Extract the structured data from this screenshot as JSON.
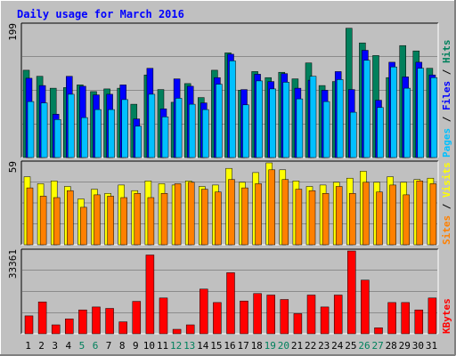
{
  "chart_data": [
    {
      "type": "bar",
      "panel": "hits-files-pages",
      "title": "Daily usage for March 2016",
      "x": [
        1,
        2,
        3,
        4,
        5,
        6,
        7,
        8,
        9,
        10,
        11,
        12,
        13,
        14,
        15,
        16,
        17,
        18,
        19,
        20,
        21,
        22,
        23,
        24,
        25,
        26,
        27,
        28,
        29,
        30,
        31
      ],
      "ymax_label": "199",
      "ylim": [
        0,
        199
      ],
      "right_labels": [
        "Pages",
        "Files",
        "Hits"
      ],
      "series": [
        {
          "name": "Hits",
          "color": "#00805c",
          "values": [
            131,
            122,
            104,
            105,
            109,
            99,
            103,
            104,
            80,
            124,
            102,
            83,
            111,
            90,
            131,
            157,
            101,
            129,
            120,
            128,
            118,
            142,
            108,
            114,
            194,
            172,
            153,
            120,
            168,
            160,
            134
          ]
        },
        {
          "name": "Files",
          "color": "#0000ff",
          "values": [
            119,
            108,
            65,
            122,
            107,
            94,
            95,
            109,
            58,
            134,
            73,
            118,
            107,
            82,
            120,
            155,
            102,
            125,
            114,
            126,
            104,
            116,
            101,
            129,
            102,
            161,
            86,
            143,
            121,
            143,
            124
          ]
        },
        {
          "name": "Pages",
          "color": "#00c0ff",
          "values": [
            84,
            82,
            57,
            95,
            60,
            72,
            72,
            87,
            47,
            95,
            61,
            89,
            80,
            72,
            110,
            145,
            79,
            115,
            103,
            113,
            88,
            122,
            84,
            117,
            68,
            146,
            75,
            136,
            104,
            134,
            120
          ]
        }
      ]
    },
    {
      "type": "bar",
      "panel": "visits-sites",
      "ymax_label": "59",
      "ylim": [
        0,
        59
      ],
      "right_labels": [
        "Sites",
        "Visits"
      ],
      "series": [
        {
          "name": "Visits",
          "color": "#ffff00",
          "values": [
            49,
            44,
            46,
            42,
            33,
            40,
            37,
            43,
            39,
            46,
            44,
            43,
            46,
            42,
            43,
            55,
            45,
            52,
            59,
            54,
            46,
            42,
            43,
            45,
            48,
            53,
            45,
            49,
            45,
            47,
            48
          ]
        },
        {
          "name": "Sites",
          "color": "#ff8000",
          "values": [
            41,
            35,
            34,
            39,
            27,
            36,
            35,
            34,
            37,
            34,
            37,
            44,
            45,
            40,
            38,
            47,
            41,
            44,
            54,
            47,
            40,
            39,
            37,
            42,
            37,
            45,
            38,
            43,
            36,
            46,
            44
          ]
        }
      ]
    },
    {
      "type": "bar",
      "panel": "kbytes",
      "ymax_label": "33361",
      "ylim": [
        0,
        33361
      ],
      "right_labels": [
        "KBytes"
      ],
      "series": [
        {
          "name": "KBytes",
          "color": "#ff0000",
          "values": [
            7205,
            12844,
            3600,
            6007,
            9607,
            10808,
            10208,
            4803,
            13044,
            31764,
            14409,
            1801,
            3601,
            18012,
            12609,
            24616,
            13209,
            16213,
            15612,
            13809,
            8106,
            15612,
            10808,
            15611,
            33361,
            21616,
            2401,
            12609,
            12609,
            9607,
            14409
          ]
        }
      ]
    }
  ],
  "x_tick_colors": [
    "#000000",
    "#000000",
    "#000000",
    "#000000",
    "#00805c",
    "#00805c",
    "#000000",
    "#000000",
    "#000000",
    "#000000",
    "#000000",
    "#00805c",
    "#00805c",
    "#000000",
    "#000000",
    "#000000",
    "#000000",
    "#000000",
    "#00805c",
    "#00805c",
    "#000000",
    "#000000",
    "#000000",
    "#000000",
    "#000000",
    "#00805c",
    "#00805c",
    "#000000",
    "#000000",
    "#000000",
    "#000000"
  ],
  "colors": {
    "background": "#c0c0c0",
    "grid": "#000000",
    "title": "#0000ff",
    "hits": "#00805c",
    "files": "#0000ff",
    "pages": "#00c0ff",
    "visits": "#ffff00",
    "sites": "#ff8000",
    "kbytes": "#ff0000"
  }
}
